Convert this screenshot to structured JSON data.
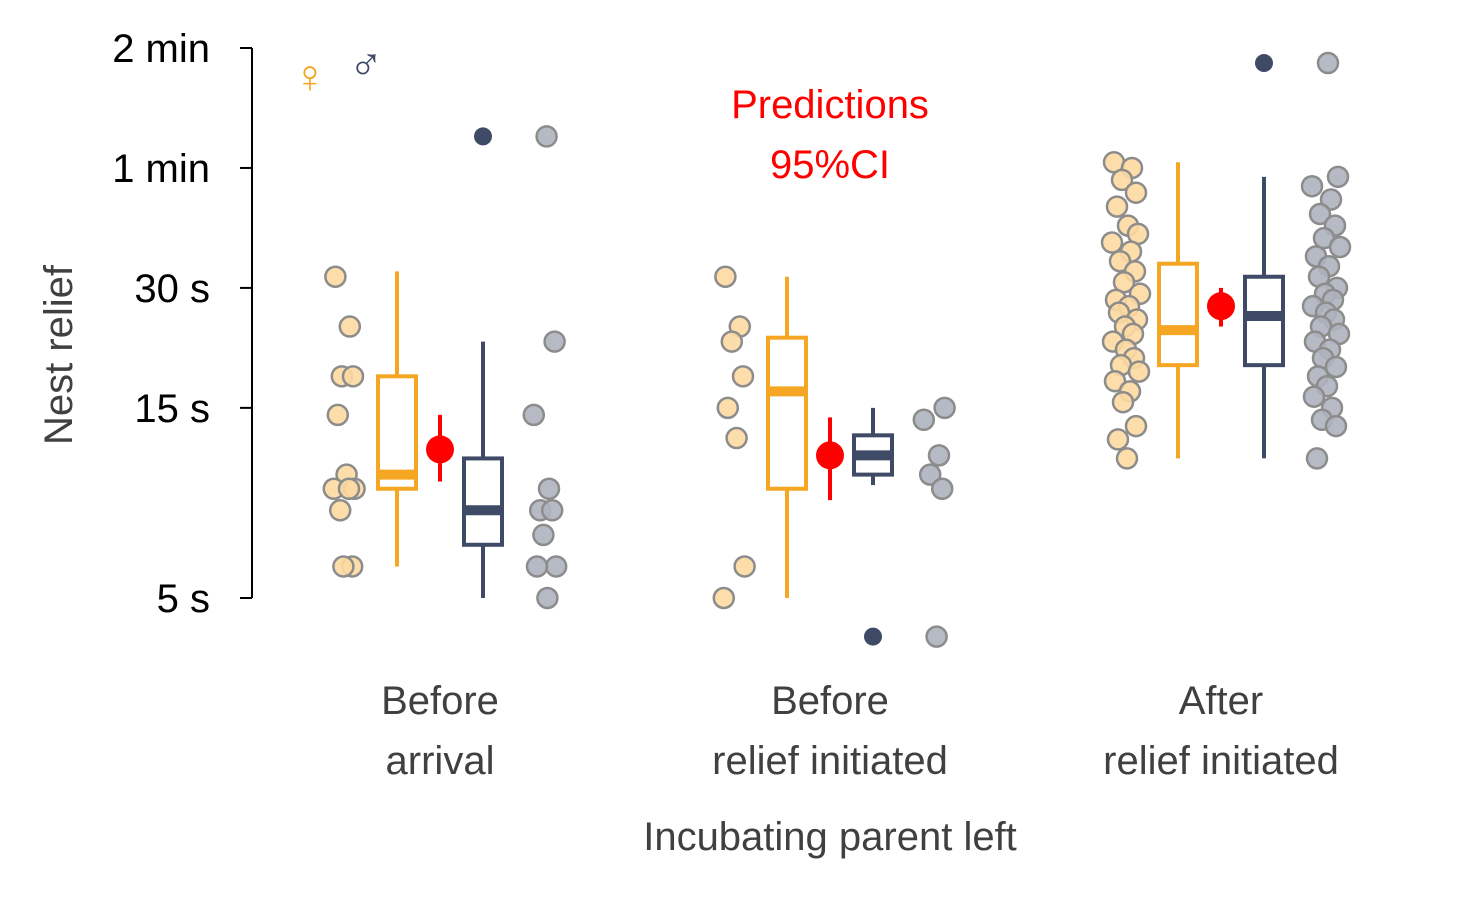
{
  "chart_data": {
    "type": "box",
    "ylabel": "Nest relief",
    "xlabel": "Incubating parent left",
    "yscale": "log",
    "ylim_seconds": [
      5,
      120
    ],
    "y_ticks": [
      {
        "value": 5,
        "label": "5 s"
      },
      {
        "value": 15,
        "label": "15 s"
      },
      {
        "value": 30,
        "label": "30 s"
      },
      {
        "value": 60,
        "label": "1 min"
      },
      {
        "value": 120,
        "label": "2 min"
      }
    ],
    "legend": {
      "female_symbol": "♀",
      "male_symbol": "♂",
      "placement": "top-left"
    },
    "annotation": {
      "line1": "Predictions",
      "line2": "95%CI"
    },
    "colors": {
      "female": "#f5a623",
      "female_point": "#fdd9a0",
      "male": "#3f4a66",
      "male_point": "#aeb2be",
      "point_edge": "#8c8c8c",
      "prediction": "#ff0000",
      "axis": "#000000"
    },
    "categories": [
      {
        "label_line1": "Before",
        "label_line2": "arrival",
        "female_box": {
          "whisker_low": 6,
          "q1": 9.4,
          "median": 10.2,
          "q3": 18,
          "whisker_high": 33
        },
        "male_box": {
          "whisker_low": 5,
          "q1": 6.8,
          "median": 8.3,
          "q3": 11.2,
          "whisker_high": 22,
          "outliers": [
            72
          ]
        },
        "prediction": {
          "estimate": 11.8,
          "ci_low": 9.8,
          "ci_high": 14.4
        },
        "female_points": [
          32,
          24,
          18,
          18,
          14.4,
          10.2,
          9.4,
          9.4,
          9.4,
          8.3,
          6,
          6
        ],
        "male_points": [
          72,
          22,
          14.4,
          9.4,
          8.3,
          8.3,
          7.2,
          6,
          6,
          5
        ]
      },
      {
        "label_line1": "Before",
        "label_line2": "relief initiated",
        "female_box": {
          "whisker_low": 5,
          "q1": 9.4,
          "median": 16.5,
          "q3": 22.5,
          "whisker_high": 32
        },
        "male_box": {
          "whisker_low": 9.6,
          "q1": 10.2,
          "median": 11.4,
          "q3": 12.8,
          "whisker_high": 15
        },
        "prediction": {
          "estimate": 11.4,
          "ci_low": 8.8,
          "ci_high": 14.2
        },
        "female_points": [
          32,
          24,
          22,
          18,
          15,
          12.6,
          6,
          5
        ],
        "male_points": [
          4,
          15,
          14,
          11.4,
          10.2,
          9.4
        ],
        "male_outliers": [
          4
        ]
      },
      {
        "label_line1": "After",
        "label_line2": "relief initiated",
        "female_box": {
          "whisker_low": 11.2,
          "q1": 19.2,
          "median": 23.5,
          "q3": 34.5,
          "whisker_high": 62
        },
        "male_box": {
          "whisker_low": 11.2,
          "q1": 19.2,
          "median": 25.5,
          "q3": 32,
          "whisker_high": 57,
          "outliers": [
            110
          ]
        },
        "prediction": {
          "estimate": 27,
          "ci_low": 24,
          "ci_high": 30
        },
        "female_points": [
          62,
          60,
          56,
          52,
          48,
          43,
          41,
          39,
          37,
          35,
          33,
          31,
          29,
          28,
          27,
          26,
          25,
          24,
          23,
          22,
          21,
          20,
          19.2,
          18.5,
          17.5,
          16.5,
          15.5,
          13.5,
          12.5,
          11.2
        ],
        "male_points": [
          110,
          57,
          54,
          50,
          46,
          43,
          40,
          38,
          36,
          34,
          32,
          30,
          29,
          28,
          27,
          26,
          25,
          24,
          23,
          22,
          21,
          20,
          19,
          18,
          17,
          16,
          15,
          14,
          13.5,
          11.2
        ]
      }
    ]
  }
}
